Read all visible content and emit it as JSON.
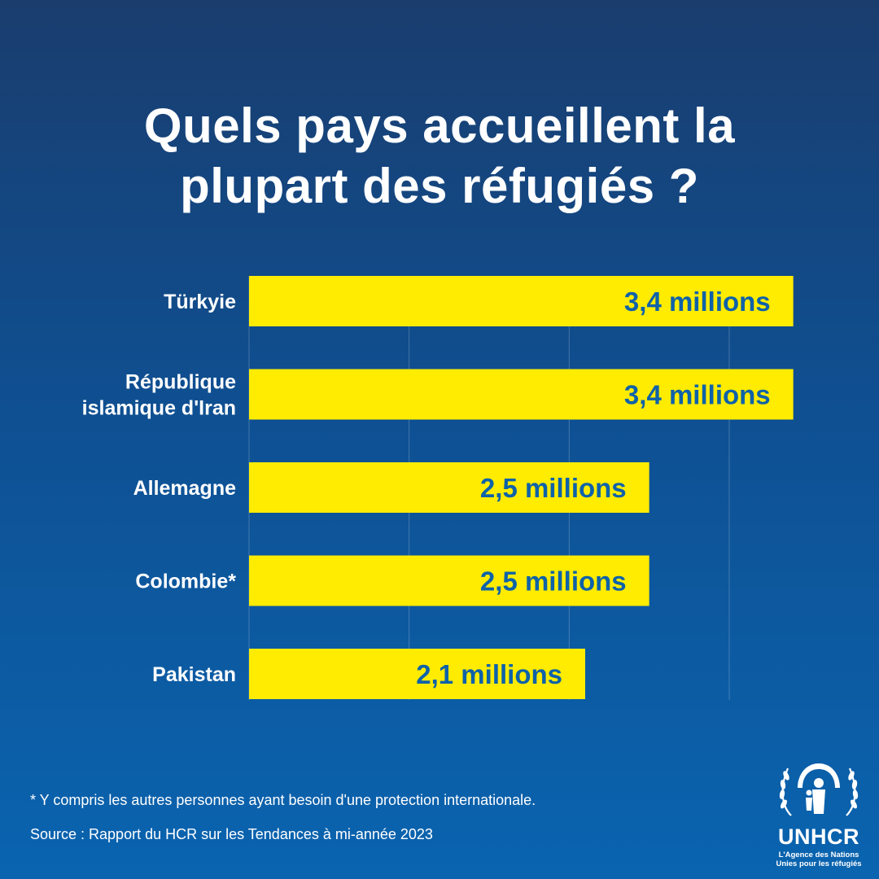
{
  "title": {
    "line1": "Quels pays accueillent la",
    "line2": "plupart des réfugiés ?"
  },
  "chart_data": {
    "type": "bar",
    "orientation": "horizontal",
    "title": "Quels pays accueillent la plupart des réfugiés ?",
    "categories": [
      [
        "Türkyie"
      ],
      [
        "République",
        "islamique d'Iran"
      ],
      [
        "Allemagne"
      ],
      [
        "Colombie*"
      ],
      [
        "Pakistan"
      ]
    ],
    "values": [
      3.4,
      3.4,
      2.5,
      2.5,
      2.1
    ],
    "value_labels": [
      "3,4 millions",
      "3,4 millions",
      "2,5 millions",
      "2,5 millions",
      "2,1 millions"
    ],
    "unit": "millions",
    "xlim": [
      0,
      4
    ],
    "grid": true,
    "bar_color": "#ffec00",
    "label_color": "#0e62a9"
  },
  "footnote": "* Y compris les autres personnes ayant besoin d'une protection internationale.",
  "source": "Source : Rapport du HCR sur les Tendances à mi-année 2023",
  "logo": {
    "name": "UNHCR",
    "tagline1": "L'Agence des Nations",
    "tagline2": "Unies pour les réfugiés"
  }
}
